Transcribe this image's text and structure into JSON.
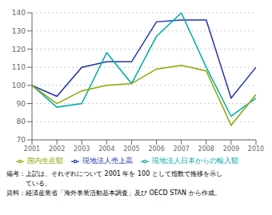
{
  "chart_data": {
    "type": "line",
    "x": [
      2001,
      2002,
      2003,
      2004,
      2005,
      2006,
      2007,
      2008,
      2009,
      2010
    ],
    "xlim": [
      2001,
      2010
    ],
    "xticks": [
      2001,
      2002,
      2003,
      2004,
      2005,
      2006,
      2007,
      2008,
      2009,
      2010
    ],
    "ylim": [
      70,
      140
    ],
    "yticks": [
      70,
      80,
      90,
      100,
      110,
      120,
      130,
      140
    ],
    "grid": "y",
    "legend": "bottom",
    "series": [
      {
        "name": "現地法人売上高",
        "color": "#2233aa",
        "values": [
          100,
          94,
          110,
          113,
          113,
          135,
          136,
          136,
          93,
          110
        ]
      },
      {
        "name": "現地法人日本からの輸入額",
        "color": "#00aaaa",
        "values": [
          100,
          88,
          90,
          118,
          101,
          127,
          140,
          110,
          83,
          93
        ]
      },
      {
        "name": "国内生産額",
        "color": "#88aa00",
        "values": [
          100,
          90,
          97,
          100,
          101,
          109,
          111,
          108,
          78,
          95
        ]
      }
    ],
    "annotations": [
      "備考：上記は、それぞれについて 2001 年を 100 として指数で推移を示し",
      "　　　ている。",
      "資料：経済産業省「海外事業活動基本調査」及び OECD STAN から作成。"
    ]
  }
}
